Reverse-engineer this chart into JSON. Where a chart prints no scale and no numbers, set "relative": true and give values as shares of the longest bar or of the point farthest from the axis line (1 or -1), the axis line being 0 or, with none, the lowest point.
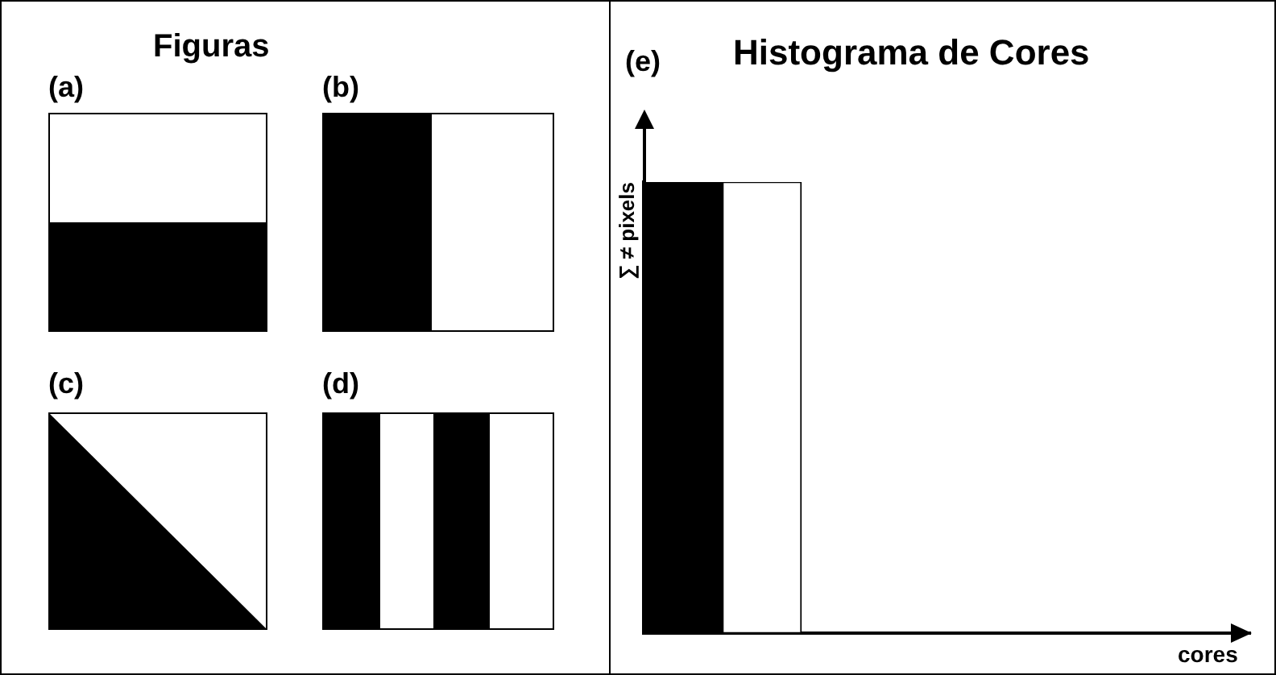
{
  "chart_data": {
    "type": "bar",
    "title": "Histograma de Cores",
    "ylabel": "∑ ≠ pixels",
    "categories": [
      null,
      null
    ],
    "values": [
      1,
      1
    ],
    "colors": [
      "#000000",
      "#ffffff"
    ],
    "relative": true,
    "grid": false,
    "legend": false,
    "annotations": [
      "Figuras",
      "(a)",
      "(b)",
      "(c)",
      "(d)",
      "(e)",
      "cores"
    ]
  }
}
